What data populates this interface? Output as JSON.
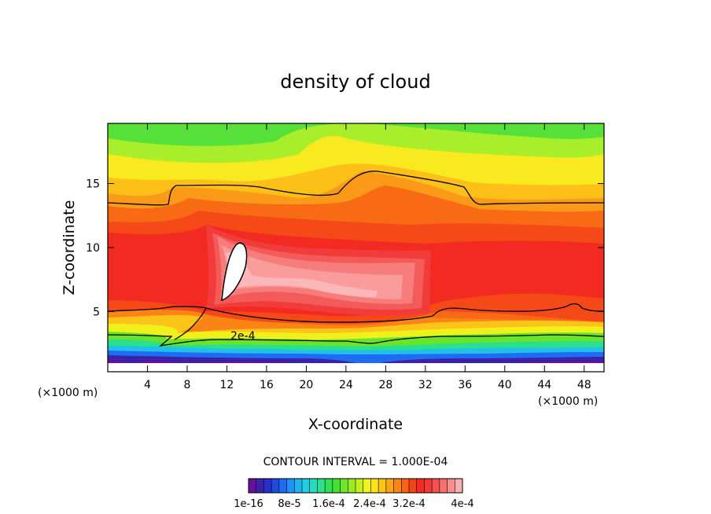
{
  "chart_data": {
    "type": "heatmap",
    "title": "density of cloud",
    "xlabel": "X-coordinate",
    "ylabel": "Z-coordinate",
    "x_units": "(×1000 m)",
    "x_units_right": "(×1000 m)",
    "xlim": [
      0,
      50
    ],
    "ylim": [
      0.3,
      19.7
    ],
    "x_ticks": [
      4,
      8,
      12,
      16,
      20,
      24,
      28,
      32,
      36,
      40,
      44,
      48
    ],
    "x_tick_labels": [
      "4",
      "8",
      "12",
      "16",
      "20",
      "24",
      "28",
      "32",
      "36",
      "40",
      "44",
      "48"
    ],
    "y_ticks": [
      5,
      10,
      15
    ],
    "y_tick_labels": [
      "5",
      "10",
      "15"
    ],
    "contour_interval_text": "CONTOUR INTERVAL = 1.000E-04",
    "contour_label": "2e-4",
    "colorbar_labels": [
      "1e-16",
      "8e-5",
      "1.6e-4",
      "2.4e-4",
      "3.2e-4",
      "4e-4"
    ],
    "colorbar_colors": [
      "#6a0f9a",
      "#3b22a8",
      "#2730c8",
      "#1f4ce0",
      "#1f6cf2",
      "#1f90f4",
      "#1fb4f0",
      "#22cde0",
      "#26dcc0",
      "#2ae08a",
      "#30e050",
      "#48e030",
      "#70e628",
      "#98ec22",
      "#c4f022",
      "#eef41c",
      "#fde21c",
      "#fdc418",
      "#fca418",
      "#fb8416",
      "#f86414",
      "#f54218",
      "#f22a22",
      "#f23838",
      "#f45252",
      "#f67070",
      "#f88e8e",
      "#fbb0b0"
    ],
    "grid": false
  }
}
